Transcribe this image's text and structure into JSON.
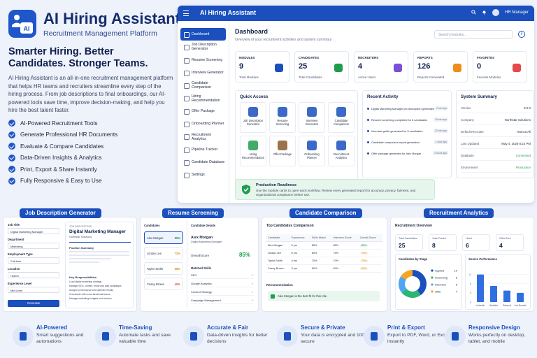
{
  "brand": {
    "title": "AI Hiring Assistant",
    "subtitle": "Recruitment Management Platform",
    "logo_text": "AI"
  },
  "hero": {
    "title": "Smarter Hiring. Better Candidates. Stronger Teams.",
    "description": "AI Hiring Assistant is an all-in-one recruitment management platform that helps HR teams and recruiters streamline every step of the hiring process. From job descriptions to final onboardings, our AI-powered tools save time, improve decision-making, and help you hire the best talent faster."
  },
  "features": [
    "AI-Powered Recruitment Tools",
    "Generate Professional HR Documents",
    "Evaluate & Compare Candidates",
    "Data-Driven Insights & Analytics",
    "Print, Export & Share Instantly",
    "Fully Responsive & Easy to Use"
  ],
  "app": {
    "title": "AI Hiring Assistant",
    "user": "HR Manager",
    "sidebar": [
      "Dashboard",
      "Job Description Generator",
      "Resume Screening",
      "Interview Generator",
      "Candidate Comparison",
      "Hiring Recommendation",
      "Offer Package",
      "Onboarding Planner",
      "Recruitment Analytics",
      "Pipeline Tracker",
      "Candidate Database",
      "Settings"
    ],
    "dashboard_title": "Dashboard",
    "dashboard_sub": "Overview of your recruitment activities and system summary",
    "search_placeholder": "Search modules...",
    "stats": [
      {
        "label": "MODULES",
        "value": "9",
        "sub": "Total Modules",
        "color": "#1a4fbd"
      },
      {
        "label": "CANDIDATES",
        "value": "25",
        "sub": "Total Candidates",
        "color": "#1f9d4c"
      },
      {
        "label": "RECRUITERS",
        "value": "4",
        "sub": "Active Users",
        "color": "#7b4fd6"
      },
      {
        "label": "REPORTS",
        "value": "126",
        "sub": "Reports Generated",
        "color": "#f08c1a"
      },
      {
        "label": "FAVORITES",
        "value": "0",
        "sub": "Favorite Modules",
        "color": "#e5484d"
      }
    ],
    "quick_access_title": "Quick Access",
    "quick_access": [
      {
        "label": "Job Description Generator",
        "color": "#1a4fbd"
      },
      {
        "label": "Resume Screening",
        "color": "#1a4fbd"
      },
      {
        "label": "Interview Generator",
        "color": "#1a4fbd"
      },
      {
        "label": "Candidate Comparison",
        "color": "#1a4fbd"
      },
      {
        "label": "Hiring Recommendation",
        "color": "#1f9d4c"
      },
      {
        "label": "Offer Package",
        "color": "#8a5a2b"
      },
      {
        "label": "Onboarding Planner",
        "color": "#1a4fbd"
      },
      {
        "label": "Recruitment Analytics",
        "color": "#1a4fbd"
      }
    ],
    "recent_title": "Recent Activity",
    "recent": [
      {
        "text": "Digital Marketing Manager job description generated",
        "time": "2 min ago"
      },
      {
        "text": "Resume screening completed for 8 candidates",
        "time": "15 min ago"
      },
      {
        "text": "Interview guide generated for 5 candidates",
        "time": "32 min ago"
      },
      {
        "text": "Candidate comparison report generated",
        "time": "1 hour ago"
      },
      {
        "text": "Offer package generated for Alex Morgan",
        "time": "2 hours ago"
      }
    ],
    "summary_title": "System Summary",
    "summary": [
      {
        "k": "Version",
        "v": "5.0.0"
      },
      {
        "k": "Company",
        "v": "Northstar Solutions"
      },
      {
        "k": "Default Recruiter",
        "v": "Hamza Ali"
      },
      {
        "k": "Last Updated",
        "v": "May 4, 2026 8:22 PM"
      },
      {
        "k": "Database",
        "v": "Connected"
      },
      {
        "k": "Environment",
        "v": "Production"
      }
    ],
    "production": {
      "title": "Production Readiness",
      "desc": "Use the module cards to open each workflow. Review every generated report for accuracy, privacy, fairness, and organizational compliance before use."
    }
  },
  "jd": {
    "tag": "Job Description Generator",
    "fields": [
      {
        "label": "Job Title",
        "value": "Digital Marketing Manager"
      },
      {
        "label": "Department",
        "value": "Marketing"
      },
      {
        "label": "Employment Type",
        "value": "Full-time"
      },
      {
        "label": "Location",
        "value": "Hybrid"
      },
      {
        "label": "Experience Level",
        "value": "Mid Level"
      }
    ],
    "button": "Generate",
    "doc_small": "JOB DESCRIPTION",
    "doc_title": "Digital Marketing Manager",
    "doc_company": "Northstar Solutions",
    "summary_h": "Position Summary",
    "resp_h": "Key Responsibilities",
    "resp": [
      "Lead digital marketing strategy",
      "Manage SEO, content, email and paid campaigns",
      "Analyze performance and optimize results",
      "Coordinate with cross-functional teams",
      "Manage marketing budgets and vendors"
    ]
  },
  "rs": {
    "tag": "Resume Screening",
    "cand_h": "Candidates",
    "candidates": [
      {
        "name": "Alex Morgan",
        "score": "85%",
        "color": "#1f9d4c"
      },
      {
        "name": "Jordan Lee",
        "score": "72%",
        "color": "#e08a17"
      },
      {
        "name": "Taylor Smith",
        "score": "68%",
        "color": "#e08a17"
      },
      {
        "name": "Casey Brown",
        "score": "45%",
        "color": "#e5484d"
      }
    ],
    "details_h": "Candidate Details",
    "detail_name": "Alex Morgan",
    "detail_role": "Digital Marketing Manager",
    "overall_label": "Overall Score",
    "overall": "85%",
    "skills_h": "Matched Skills",
    "skills": [
      "SEO",
      "Google Analytics",
      "Content Strategy",
      "Campaign Management"
    ]
  },
  "cc": {
    "tag": "Candidate Comparison",
    "title": "Top Candidates Comparison",
    "headers": [
      "Candidate",
      "Experience",
      "Skills Match",
      "Interview Score",
      "Overall Score"
    ],
    "rows": [
      [
        "Alex Morgan",
        "5 yrs",
        "85%",
        "85%",
        "85%"
      ],
      [
        "Jordan Lee",
        "6 yrs",
        "80%",
        "75%",
        "75%"
      ],
      [
        "Taylor Smith",
        "4 yrs",
        "70%",
        "70%",
        "70%"
      ],
      [
        "Casey Brown",
        "3 yrs",
        "60%",
        "60%",
        "60%"
      ]
    ],
    "rec_h": "Recommendation",
    "rec": "Alex Morgan is the best fit for this role."
  },
  "ra": {
    "tag": "Recruitment Analytics",
    "title": "Recruitment Overview",
    "kpis": [
      {
        "label": "Total Candidates",
        "value": "25"
      },
      {
        "label": "Jobs Posted",
        "value": "8"
      },
      {
        "label": "Hired",
        "value": "6"
      },
      {
        "label": "Offer Sent",
        "value": "4"
      }
    ],
    "stage_h": "Candidates by Stage",
    "stages": [
      {
        "name": "Applied",
        "value": 10,
        "color": "#1a4fbd"
      },
      {
        "name": "Screening",
        "value": 6,
        "color": "#2bb673"
      },
      {
        "name": "Interview",
        "value": 5,
        "color": "#4ea6f2"
      },
      {
        "name": "Offer",
        "value": 4,
        "color": "#f5a524"
      }
    ],
    "source_h": "Source Performance",
    "sources": [
      {
        "name": "LinkedIn",
        "value": 12
      },
      {
        "name": "Website",
        "value": 7
      },
      {
        "name": "Referral",
        "value": 5
      },
      {
        "name": "Job Boards",
        "value": 4
      }
    ]
  },
  "bottom": [
    {
      "title": "AI-Powered",
      "desc": "Smart suggestions and automations",
      "icon": "robot-icon"
    },
    {
      "title": "Time-Saving",
      "desc": "Automate tasks and save valuable time",
      "icon": "clock-icon"
    },
    {
      "title": "Accurate & Fair",
      "desc": "Data-driven insights for better decisions",
      "icon": "scale-icon"
    },
    {
      "title": "Secure & Private",
      "desc": "Your data is encrypted and 100% secure",
      "icon": "lock-icon"
    },
    {
      "title": "Print & Export",
      "desc": "Export to PDF, Word, or Excel instantly",
      "icon": "printer-icon"
    },
    {
      "title": "Responsive Design",
      "desc": "Works perfectly on desktop, tablet, and mobile",
      "icon": "devices-icon"
    }
  ]
}
